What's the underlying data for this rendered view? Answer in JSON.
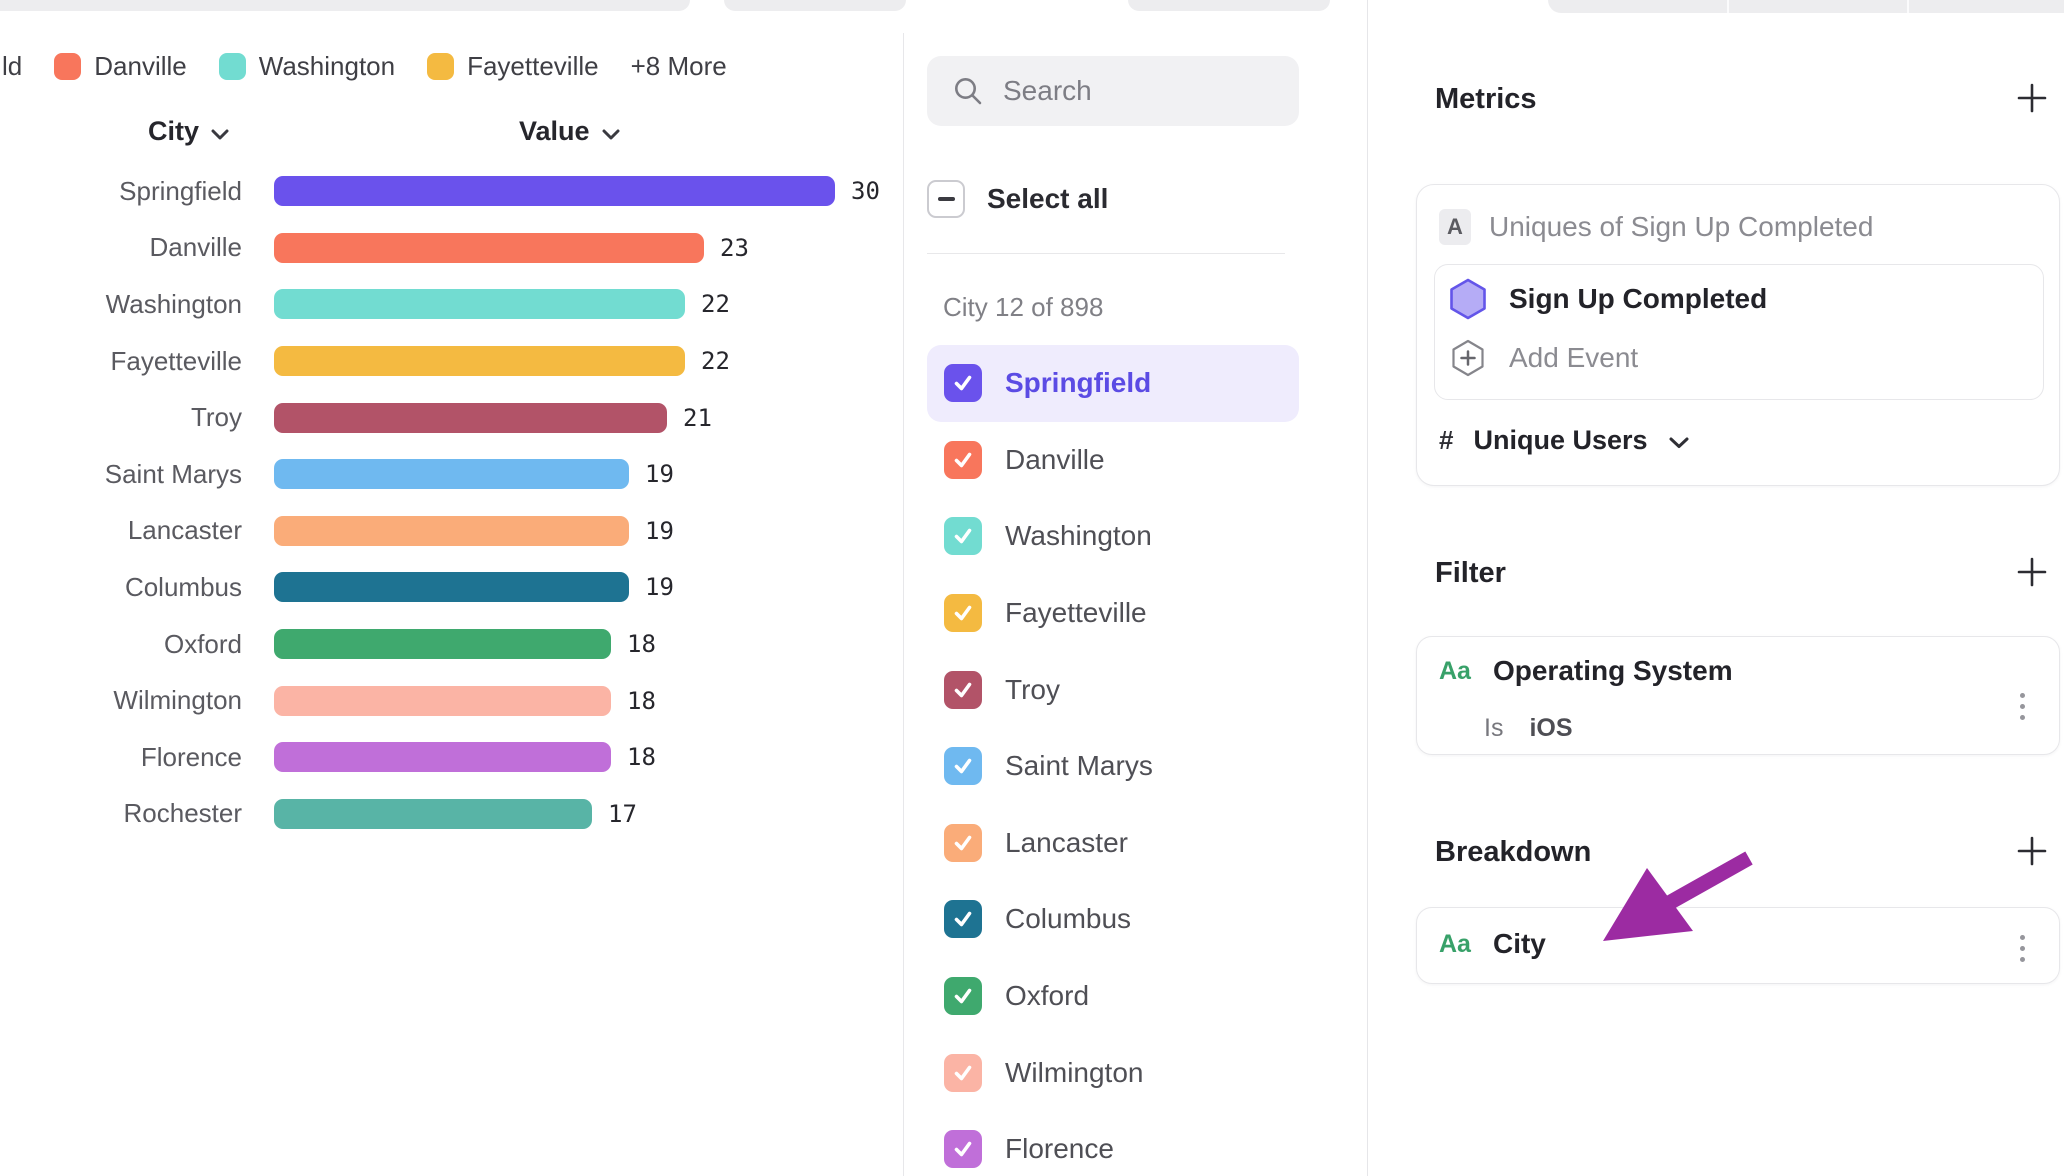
{
  "chart": {
    "legend": {
      "clipped_label": "ld",
      "items": [
        {
          "label": "Danville",
          "color": "#F8765C"
        },
        {
          "label": "Washington",
          "color": "#72DCD1"
        },
        {
          "label": "Fayetteville",
          "color": "#F4BA41"
        }
      ],
      "more_label": "+8 More"
    },
    "columns": {
      "city": "City",
      "value": "Value"
    }
  },
  "chart_data": {
    "type": "bar",
    "orientation": "horizontal",
    "title": "",
    "xlabel": "Value",
    "ylabel": "City",
    "xlim": [
      0,
      30
    ],
    "grid": false,
    "sort": "descending",
    "categories": [
      "Springfield",
      "Danville",
      "Washington",
      "Fayetteville",
      "Troy",
      "Saint Marys",
      "Lancaster",
      "Columbus",
      "Oxford",
      "Wilmington",
      "Florence",
      "Rochester"
    ],
    "values": [
      30,
      23,
      22,
      22,
      21,
      19,
      19,
      19,
      18,
      18,
      18,
      17
    ],
    "colors": [
      "#6A52EC",
      "#F8765C",
      "#72DCD1",
      "#F4BA41",
      "#B25368",
      "#6FB9F0",
      "#FAAC79",
      "#1E7392",
      "#3FA96E",
      "#FBB4A5",
      "#C06FD9",
      "#58B4A6"
    ]
  },
  "picker": {
    "search_placeholder": "Search",
    "select_all": "Select all",
    "select_all_state": "indeterminate",
    "count_label": "City 12 of 898",
    "items": [
      {
        "label": "Springfield",
        "color": "#6A52EC",
        "checked": true,
        "selected": true
      },
      {
        "label": "Danville",
        "color": "#F8765C",
        "checked": true,
        "selected": false
      },
      {
        "label": "Washington",
        "color": "#72DCD1",
        "checked": true,
        "selected": false
      },
      {
        "label": "Fayetteville",
        "color": "#F4BA41",
        "checked": true,
        "selected": false
      },
      {
        "label": "Troy",
        "color": "#B25368",
        "checked": true,
        "selected": false
      },
      {
        "label": "Saint Marys",
        "color": "#6FB9F0",
        "checked": true,
        "selected": false
      },
      {
        "label": "Lancaster",
        "color": "#FAAC79",
        "checked": true,
        "selected": false
      },
      {
        "label": "Columbus",
        "color": "#1E7392",
        "checked": true,
        "selected": false
      },
      {
        "label": "Oxford",
        "color": "#3FA96E",
        "checked": true,
        "selected": false
      },
      {
        "label": "Wilmington",
        "color": "#FBB4A5",
        "checked": true,
        "selected": false
      },
      {
        "label": "Florence",
        "color": "#C06FD9",
        "checked": true,
        "selected": false
      }
    ]
  },
  "panel": {
    "metrics": {
      "title": "Metrics",
      "badge": "A",
      "summary": "Uniques of Sign Up Completed",
      "event": "Sign Up Completed",
      "add_event": "Add Event",
      "measure_prefix": "#",
      "measure": "Unique Users"
    },
    "filter": {
      "title": "Filter",
      "type_badge": "Aa",
      "property": "Operating System",
      "operator": "Is",
      "value": "iOS"
    },
    "breakdown": {
      "title": "Breakdown",
      "type_badge": "Aa",
      "property": "City"
    }
  },
  "colors": {
    "accent": "#6A52EC",
    "selected_row_bg": "#EFECFD",
    "arrow_annotation": "#9C2BA2",
    "aa_green": "#38A169",
    "hexagon_fill": "#B5ACF6",
    "hexagon_stroke": "#6355E9"
  }
}
